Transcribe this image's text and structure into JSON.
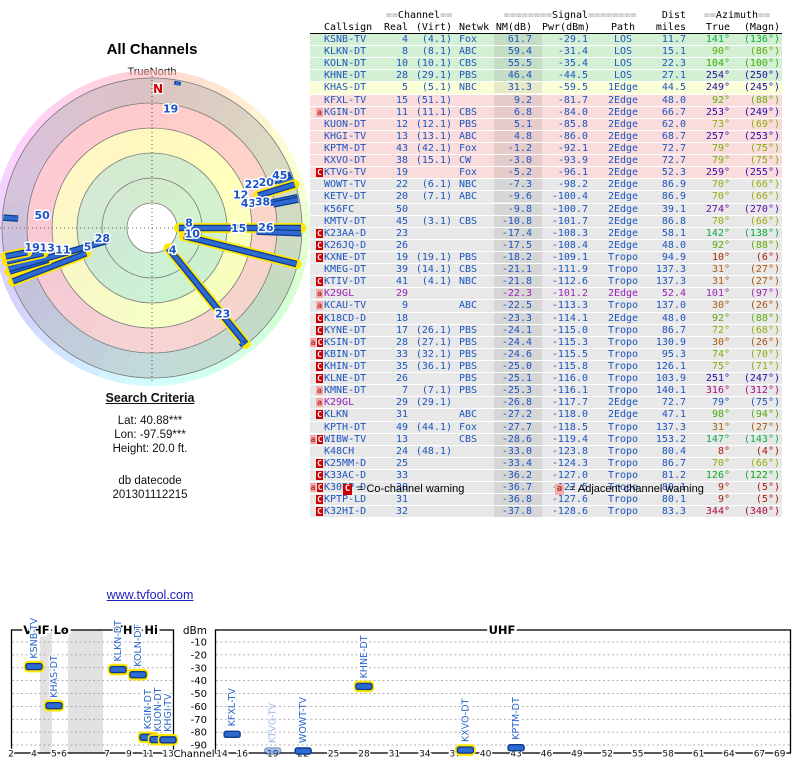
{
  "page": {
    "title": "All Channels",
    "compass_label": "TrueNorth",
    "website": "www.tvfool.com"
  },
  "search_criteria": {
    "heading": "Search Criteria",
    "lat": "Lat: 40.88***",
    "lon": "Lon: -97.59***",
    "height": "Height: 20.0 ft.",
    "datecode_label": "db datecode",
    "datecode_value": "201301112215"
  },
  "legend": {
    "co_symbol": "C",
    "co_text": "= Co-channel warning",
    "adj_symbol": "a",
    "adj_text": "= Adjacent channel warning"
  },
  "colors": {
    "station_blue": "#1d55c0",
    "purple_accent": "#9a23b8",
    "row_los_green": "#d4f0d4",
    "row_1edge_yellow": "#fbffd8",
    "row_2edge_pink": "#fbdcdc",
    "row_far_gray": "#e8e8e8",
    "co_badge_red": "#cc0000",
    "adj_badge_pink": "#f5aaaa",
    "bar_blue": "#2e6ad2",
    "bar_edge_navy": "#0d3c8e",
    "highlight_yellow": "#ffe600",
    "north_red": "#cc0000",
    "link_blue": "#2222bb"
  },
  "table": {
    "group_headers": {
      "channel": {
        "pre": "==",
        "label": "Channel",
        "post": "=="
      },
      "signal": {
        "pre": "========",
        "label": "Signal",
        "post": "========"
      },
      "dist": "Dist",
      "azimuth": {
        "pre": "==",
        "label": "Azimuth",
        "post": "=="
      }
    },
    "columns": [
      "Callsign",
      "Real",
      "(Virt)",
      "Netwk",
      "NM(dB)",
      "Pwr(dBm)",
      "Path",
      "miles",
      "True",
      "(Magn)"
    ],
    "rows": [
      [
        "",
        "KSNB-TV",
        "4",
        "(4.1)",
        "Fox",
        "61.7",
        "-29.1",
        "LOS",
        "11.7",
        141,
        136,
        "los",
        ""
      ],
      [
        "",
        "KLKN-DT",
        "8",
        "(8.1)",
        "ABC",
        "59.4",
        "-31.4",
        "LOS",
        "15.1",
        90,
        86,
        "los",
        ""
      ],
      [
        "",
        "KOLN-DT",
        "10",
        "(10.1)",
        "CBS",
        "55.5",
        "-35.4",
        "LOS",
        "22.3",
        104,
        100,
        "los",
        ""
      ],
      [
        "",
        "KHNE-DT",
        "28",
        "(29.1)",
        "PBS",
        "46.4",
        "-44.5",
        "LOS",
        "27.1",
        254,
        250,
        "los",
        ""
      ],
      [
        "",
        "KHAS-DT",
        "5",
        "(5.1)",
        "NBC",
        "31.3",
        "-59.5",
        "1Edge",
        "44.5",
        249,
        245,
        "edge1",
        ""
      ],
      [
        "",
        "KFXL-TV",
        "15",
        "(51.1)",
        "",
        "9.2",
        "-81.7",
        "2Edge",
        "48.0",
        92,
        88,
        "edge2",
        ""
      ],
      [
        "a",
        "KGIN-DT",
        "11",
        "(11.1)",
        "CBS",
        "6.8",
        "-84.0",
        "2Edge",
        "66.7",
        253,
        249,
        "edge2",
        ""
      ],
      [
        "",
        "KUON-DT",
        "12",
        "(12.1)",
        "PBS",
        "5.1",
        "-85.8",
        "2Edge",
        "62.0",
        73,
        69,
        "edge2",
        ""
      ],
      [
        "",
        "KHGI-TV",
        "13",
        "(13.1)",
        "ABC",
        "4.8",
        "-86.0",
        "2Edge",
        "68.7",
        257,
        253,
        "edge2",
        ""
      ],
      [
        "",
        "KPTM-DT",
        "43",
        "(42.1)",
        "Fox",
        "-1.2",
        "-92.1",
        "2Edge",
        "72.7",
        79,
        75,
        "edge2",
        ""
      ],
      [
        "",
        "KXVO-DT",
        "38",
        "(15.1)",
        "CW",
        "-3.0",
        "-93.9",
        "2Edge",
        "72.7",
        79,
        75,
        "edge2",
        ""
      ],
      [
        "C",
        "KTVG-TV",
        "19",
        "",
        "Fox",
        "-5.2",
        "-96.1",
        "2Edge",
        "52.3",
        259,
        255,
        "edge2",
        ""
      ],
      [
        "",
        "WOWT-TV",
        "22",
        "(6.1)",
        "NBC",
        "-7.3",
        "-98.2",
        "2Edge",
        "86.9",
        70,
        66,
        "far",
        ""
      ],
      [
        "",
        "KETV-DT",
        "20",
        "(7.1)",
        "ABC",
        "-9.6",
        "-100.4",
        "2Edge",
        "86.9",
        70,
        66,
        "far",
        ""
      ],
      [
        "",
        "K56FC",
        "50",
        "",
        "",
        "-9.8",
        "-100.7",
        "2Edge",
        "39.1",
        274,
        270,
        "far",
        ""
      ],
      [
        "",
        "KMTV-DT",
        "45",
        "(3.1)",
        "CBS",
        "-10.8",
        "-101.7",
        "2Edge",
        "86.8",
        70,
        66,
        "far",
        ""
      ],
      [
        "C",
        "K23AA-D",
        "23",
        "",
        "",
        "-17.4",
        "-108.3",
        "2Edge",
        "58.1",
        142,
        138,
        "far",
        ""
      ],
      [
        "C",
        "K26JQ-D",
        "26",
        "",
        "",
        "-17.5",
        "-108.4",
        "2Edge",
        "48.0",
        92,
        88,
        "far",
        ""
      ],
      [
        "C",
        "KXNE-DT",
        "19",
        "(19.1)",
        "PBS",
        "-18.2",
        "-109.1",
        "Tropo",
        "94.9",
        10,
        6,
        "far",
        ""
      ],
      [
        "",
        "KMEG-DT",
        "39",
        "(14.1)",
        "CBS",
        "-21.1",
        "-111.9",
        "Tropo",
        "137.3",
        31,
        27,
        "far",
        ""
      ],
      [
        "C",
        "KTIV-DT",
        "41",
        "(4.1)",
        "NBC",
        "-21.8",
        "-112.6",
        "Tropo",
        "137.3",
        31,
        27,
        "far",
        ""
      ],
      [
        "a",
        "K29GL",
        "29",
        "",
        "",
        "-22.3",
        "-101.2",
        "2Edge",
        "52.4",
        101,
        97,
        "far",
        "purple"
      ],
      [
        "a",
        "KCAU-TV",
        "9",
        "",
        "ABC",
        "-22.5",
        "-113.3",
        "Tropo",
        "137.0",
        30,
        26,
        "far",
        ""
      ],
      [
        "C",
        "K18CD-D",
        "18",
        "",
        "",
        "-23.3",
        "-114.1",
        "2Edge",
        "48.0",
        92,
        88,
        "far",
        ""
      ],
      [
        "C",
        "KYNE-DT",
        "17",
        "(26.1)",
        "PBS",
        "-24.1",
        "-115.0",
        "Tropo",
        "86.7",
        72,
        68,
        "far",
        ""
      ],
      [
        "aC",
        "KSIN-DT",
        "28",
        "(27.1)",
        "PBS",
        "-24.4",
        "-115.3",
        "Tropo",
        "130.9",
        30,
        26,
        "far",
        ""
      ],
      [
        "C",
        "KBIN-DT",
        "33",
        "(32.1)",
        "PBS",
        "-24.6",
        "-115.5",
        "Tropo",
        "95.3",
        74,
        70,
        "far",
        ""
      ],
      [
        "C",
        "KHIN-DT",
        "35",
        "(36.1)",
        "PBS",
        "-25.0",
        "-115.8",
        "Tropo",
        "126.1",
        75,
        71,
        "far",
        ""
      ],
      [
        "C",
        "KLNE-DT",
        "26",
        "",
        "PBS",
        "-25.1",
        "-116.0",
        "Tropo",
        "103.9",
        251,
        247,
        "far",
        ""
      ],
      [
        "a",
        "KMNE-DT",
        "7",
        "(7.1)",
        "PBS",
        "-25.3",
        "-116.1",
        "Tropo",
        "140.1",
        316,
        312,
        "far",
        ""
      ],
      [
        "a",
        "K29GL",
        "29",
        "(29.1)",
        "",
        "-26.8",
        "-117.7",
        "2Edge",
        "72.7",
        79,
        75,
        "far",
        "purple-call"
      ],
      [
        "C",
        "KLKN",
        "31",
        "",
        "ABC",
        "-27.2",
        "-118.0",
        "2Edge",
        "47.1",
        98,
        94,
        "far",
        ""
      ],
      [
        "",
        "KPTH-DT",
        "49",
        "(44.1)",
        "Fox",
        "-27.7",
        "-118.5",
        "Tropo",
        "137.3",
        31,
        27,
        "far",
        ""
      ],
      [
        "aC",
        "WIBW-TV",
        "13",
        "",
        "CBS",
        "-28.6",
        "-119.4",
        "Tropo",
        "153.2",
        147,
        143,
        "far",
        ""
      ],
      [
        "",
        "K48CH",
        "24",
        "(48.1)",
        "",
        "-33.0",
        "-123.8",
        "Tropo",
        "80.4",
        8,
        4,
        "far",
        ""
      ],
      [
        "C",
        "K25MM-D",
        "25",
        "",
        "",
        "-33.4",
        "-124.3",
        "Tropo",
        "86.7",
        70,
        66,
        "far",
        ""
      ],
      [
        "C",
        "K33AC-D",
        "33",
        "",
        "",
        "-36.2",
        "-127.0",
        "Tropo",
        "81.2",
        126,
        122,
        "far",
        ""
      ],
      [
        "aC",
        "K30BP-D",
        "30",
        "",
        "",
        "-36.7",
        "-127.5",
        "Tropo",
        "80.1",
        9,
        5,
        "far",
        ""
      ],
      [
        "C",
        "KPTP-LD",
        "31",
        "",
        "",
        "-36.8",
        "-127.6",
        "Tropo",
        "80.1",
        9,
        5,
        "far",
        ""
      ],
      [
        "C",
        "K32HI-D",
        "32",
        "",
        "",
        "-37.8",
        "-128.6",
        "Tropo",
        "83.3",
        344,
        340,
        "far",
        ""
      ]
    ]
  },
  "chart_data": [
    {
      "type": "scatter",
      "subtype": "polar_radar",
      "title": "All Channels",
      "orientation_label": "TrueNorth",
      "north_symbol": "N",
      "note": "spoke length proportional to NM(dB); azimuth in degrees true",
      "points": [
        {
          "ch": "19",
          "az": 10,
          "nm": -18.2,
          "hl": false
        },
        {
          "ch": "22",
          "az": 69,
          "nm": -7.3,
          "hl": false
        },
        {
          "ch": "20",
          "az": 70,
          "nm": -9.6,
          "hl": false
        },
        {
          "ch": "45",
          "az": 71,
          "nm": -10.8,
          "hl": false
        },
        {
          "ch": "12",
          "az": 73,
          "nm": 5.1,
          "hl": true
        },
        {
          "ch": "43",
          "az": 78,
          "nm": -1.2,
          "hl": false
        },
        {
          "ch": "38",
          "az": 79,
          "nm": -3.0,
          "hl": false
        },
        {
          "ch": "8",
          "az": 90,
          "nm": 59.4,
          "hl": true
        },
        {
          "ch": "15",
          "az": 92,
          "nm": 9.2,
          "hl": false
        },
        {
          "ch": "26",
          "az": 92,
          "nm": -17.5,
          "hl": false
        },
        {
          "ch": "10",
          "az": 104,
          "nm": 55.5,
          "hl": true
        },
        {
          "ch": "4",
          "az": 141,
          "nm": 61.7,
          "hl": true
        },
        {
          "ch": "23",
          "az": 142,
          "nm": -17.4,
          "hl": false
        },
        {
          "ch": "5",
          "az": 249,
          "nm": 31.3,
          "hl": true
        },
        {
          "ch": "11",
          "az": 253,
          "nm": 6.8,
          "hl": true
        },
        {
          "ch": "28",
          "az": 254,
          "nm": 46.4,
          "hl": false
        },
        {
          "ch": "13",
          "az": 257,
          "nm": 4.8,
          "hl": true
        },
        {
          "ch": "19",
          "az": 259,
          "nm": -5.2,
          "hl": true
        },
        {
          "ch": "50",
          "az": 274,
          "nm": -9.8,
          "hl": false
        }
      ]
    },
    {
      "type": "bar",
      "ylabel": "dBm",
      "xlabel": "Channel",
      "band_labels": [
        "VHF Lo",
        "VHF Hi",
        "UHF"
      ],
      "ylim": [
        -97,
        0
      ],
      "yticks": [
        -10,
        -20,
        -30,
        -40,
        -50,
        -60,
        -70,
        -80,
        -90
      ],
      "vhf_channel_ticks": [
        2,
        4,
        5,
        6,
        7,
        9,
        11,
        13
      ],
      "uhf_channel_ticks": [
        14,
        16,
        19,
        22,
        25,
        28,
        31,
        34,
        37,
        40,
        43,
        46,
        49,
        52,
        55,
        58,
        61,
        64,
        67,
        69
      ],
      "bars": [
        {
          "callsign": "KSNB-TV",
          "band": "vhf",
          "ch": 4,
          "dbm": -29.1,
          "hl": true,
          "faded": false
        },
        {
          "callsign": "KHAS-DT",
          "band": "vhf",
          "ch": 5,
          "dbm": -59.5,
          "hl": true,
          "faded": false
        },
        {
          "callsign": "KLKN-DT",
          "band": "vhf",
          "ch": 8,
          "dbm": -31.4,
          "hl": true,
          "faded": false
        },
        {
          "callsign": "KOLN-DT",
          "band": "vhf",
          "ch": 10,
          "dbm": -35.4,
          "hl": true,
          "faded": false
        },
        {
          "callsign": "KGIN-DT",
          "band": "vhf",
          "ch": 11,
          "dbm": -84.0,
          "hl": true,
          "faded": false
        },
        {
          "callsign": "KUON-DT",
          "band": "vhf",
          "ch": 12,
          "dbm": -85.8,
          "hl": true,
          "faded": false
        },
        {
          "callsign": "KHGI-TV",
          "band": "vhf",
          "ch": 13,
          "dbm": -86.0,
          "hl": true,
          "faded": false
        },
        {
          "callsign": "KFXL-TV",
          "band": "uhf",
          "ch": 15,
          "dbm": -81.7,
          "hl": false,
          "faded": false
        },
        {
          "callsign": "KTVG-TV",
          "band": "uhf",
          "ch": 19,
          "dbm": -96.1,
          "hl": false,
          "faded": true
        },
        {
          "callsign": "WOWT-TV",
          "band": "uhf",
          "ch": 22,
          "dbm": -98.2,
          "hl": false,
          "faded": false
        },
        {
          "callsign": "KHNE-DT",
          "band": "uhf",
          "ch": 28,
          "dbm": -44.5,
          "hl": true,
          "faded": false
        },
        {
          "callsign": "KXVO-DT",
          "band": "uhf",
          "ch": 38,
          "dbm": -93.9,
          "hl": true,
          "faded": false
        },
        {
          "callsign": "KPTM-DT",
          "band": "uhf",
          "ch": 43,
          "dbm": -92.1,
          "hl": false,
          "faded": false
        }
      ]
    }
  ]
}
